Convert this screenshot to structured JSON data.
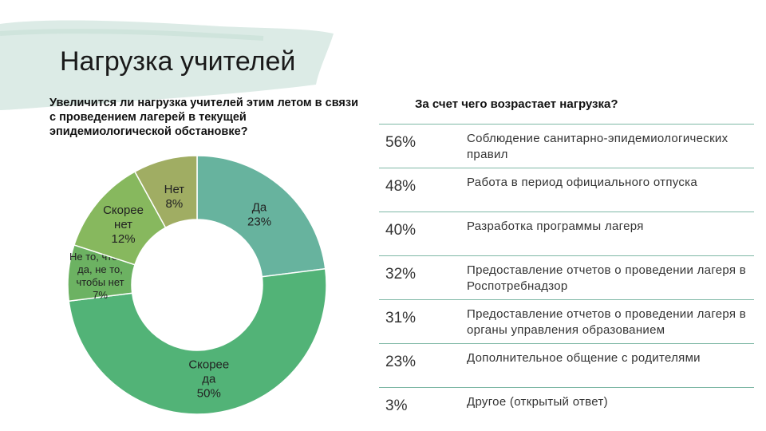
{
  "slide": {
    "title": "Нагрузка учителей"
  },
  "left_question": "Увеличится ли нагрузка учителей этим летом в связи с проведением лагерей в текущей эпидемиологической обстановке?",
  "right_question": "За счет чего возрастает нагрузка?",
  "colors": {
    "accent_line": "#7fb8a6",
    "brush": "#dcebe6"
  },
  "chart_data": [
    {
      "type": "pie",
      "donut": true,
      "title": "Увеличится ли нагрузка учителей этим летом в связи с проведением лагерей в текущей эпидемиологической обстановке?",
      "slices": [
        {
          "label": "Да",
          "value": 23,
          "value_label": "23%",
          "color": "#67b39e"
        },
        {
          "label": "Скорее да",
          "value": 50,
          "value_label": "50%",
          "color": "#52b377"
        },
        {
          "label": "Не то, чтобы да, не то, чтобы нет",
          "value": 7,
          "value_label": "7%",
          "color": "#6cb262"
        },
        {
          "label": "Скорее нет",
          "value": 12,
          "value_label": "12%",
          "color": "#87b85e"
        },
        {
          "label": "Нет",
          "value": 8,
          "value_label": "8%",
          "color": "#a0ad63"
        }
      ]
    },
    {
      "type": "table",
      "title": "За счет чего возрастает нагрузка?",
      "rows": [
        {
          "value": 56,
          "pct": "56%",
          "label": "Соблюдение санитарно-эпидемиологических правил"
        },
        {
          "value": 48,
          "pct": "48%",
          "label": "Работа в период официального отпуска"
        },
        {
          "value": 40,
          "pct": "40%",
          "label": "Разработка программы лагеря"
        },
        {
          "value": 32,
          "pct": "32%",
          "label": "Предоставление отчетов о проведении лагеря в Роспотребнадзор"
        },
        {
          "value": 31,
          "pct": "31%",
          "label": "Предоставление отчетов о проведении лагеря в органы управления образованием"
        },
        {
          "value": 23,
          "pct": "23%",
          "label": "Дополнительное общение с родителями"
        },
        {
          "value": 3,
          "pct": "3%",
          "label": "Другое (открытый ответ)"
        }
      ]
    }
  ]
}
